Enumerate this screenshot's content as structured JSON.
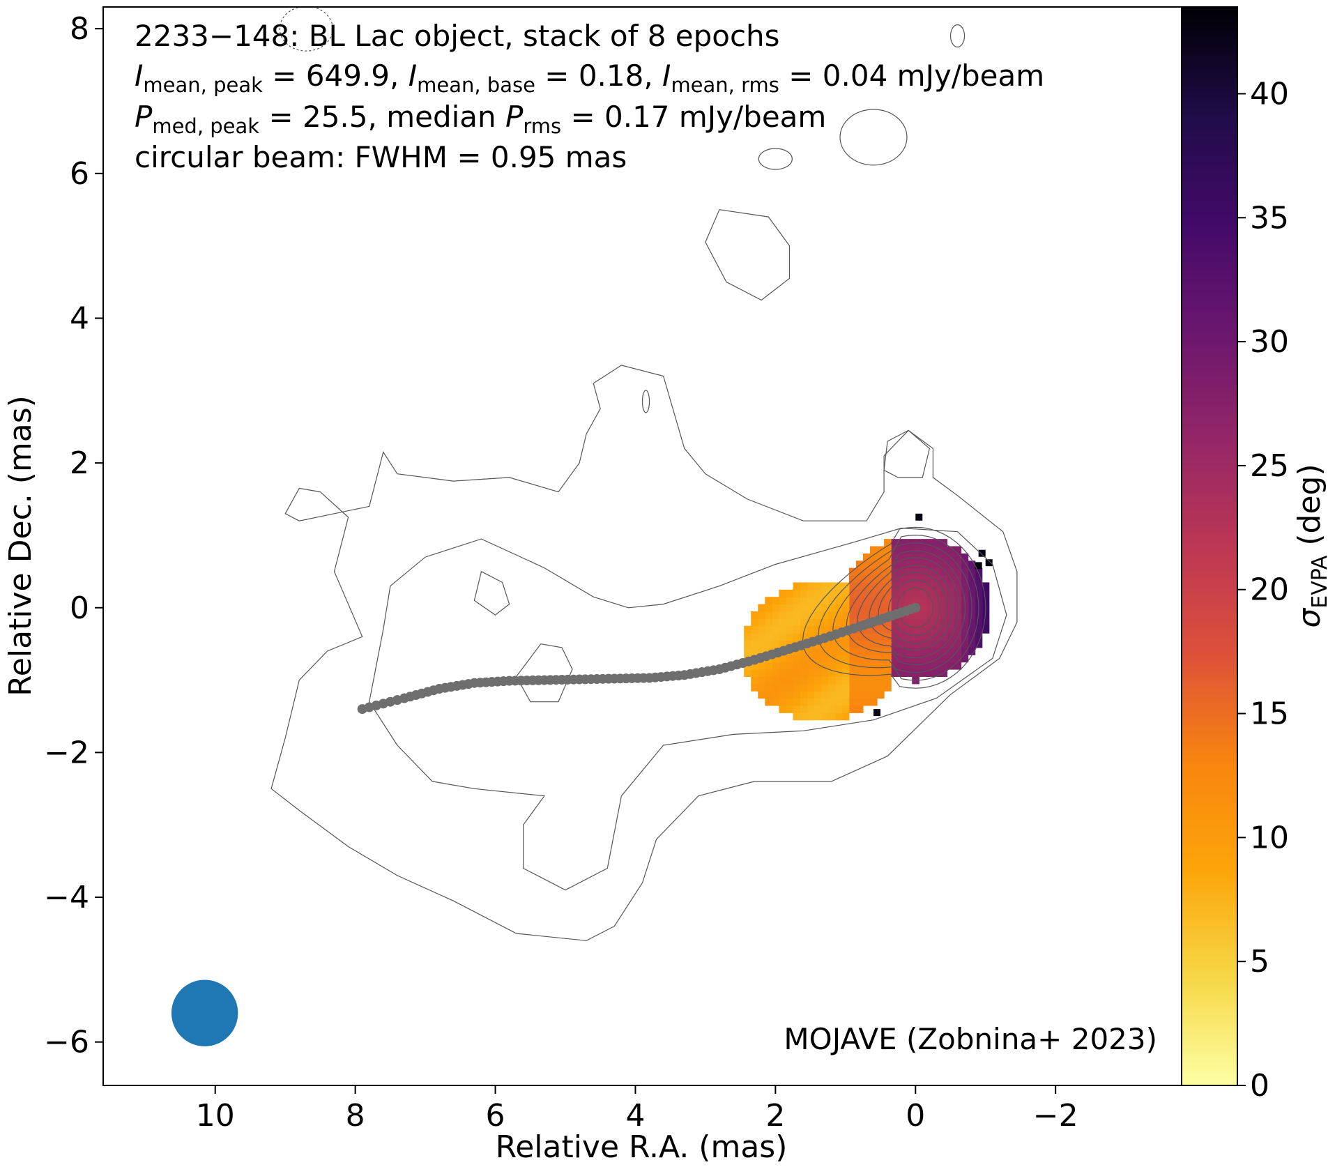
{
  "chart_data": {
    "type": "heatmap",
    "title": "2233−148: BL Lac object, stack of 8 epochs",
    "annotation_lines": [
      [
        [
          "I",
          "i"
        ],
        [
          "mean, peak",
          "sub"
        ],
        [
          " = 649.9, ",
          "n"
        ],
        [
          "I",
          "i"
        ],
        [
          "mean, base",
          "sub"
        ],
        [
          " = 0.18, ",
          "n"
        ],
        [
          "I",
          "i"
        ],
        [
          "mean, rms",
          "sub"
        ],
        [
          " = 0.04 mJy/beam",
          "n"
        ]
      ],
      [
        [
          "P",
          "i"
        ],
        [
          "med, peak",
          "sub"
        ],
        [
          " = 25.5, median ",
          "n"
        ],
        [
          "P",
          "i"
        ],
        [
          "rms",
          "sub"
        ],
        [
          " = 0.17 mJy/beam",
          "n"
        ]
      ],
      [
        [
          "circular beam: FWHM = 0.95 mas",
          "n"
        ]
      ]
    ],
    "credit": "MOJAVE (Zobnina+ 2023)",
    "xlabel": "Relative R.A. (mas)",
    "ylabel": "Relative Dec. (mas)",
    "xlim": [
      11.6,
      -3.8
    ],
    "ylim": [
      -6.6,
      8.3
    ],
    "xticks": [
      10,
      8,
      6,
      4,
      2,
      0,
      -2
    ],
    "yticks": [
      -6,
      -4,
      -2,
      0,
      2,
      4,
      6,
      8
    ],
    "grid": false,
    "colorbar": {
      "label_main": "σ",
      "label_sub": "EVPA",
      "label_unit": " (deg)",
      "colormap": "inferno_r",
      "range": [
        0,
        43.5
      ],
      "ticks": [
        0,
        5,
        10,
        15,
        20,
        25,
        30,
        35,
        40
      ],
      "stops": [
        "#fcffa4",
        "#f6d746",
        "#fca50a",
        "#f8850f",
        "#dd513a",
        "#bc3754",
        "#932667",
        "#6a176e",
        "#420a68",
        "#1f0c48",
        "#000004"
      ]
    },
    "contour_color": "#555555",
    "contour_levels_relative_to_core": [
      0.36,
      0.43,
      0.5,
      0.57,
      0.63,
      0.7,
      0.76,
      0.83,
      0.9
    ],
    "ridgeline": {
      "color": "#6e6e6e",
      "points": [
        [
          7.9,
          -1.4
        ],
        [
          7.3,
          -1.25
        ],
        [
          6.8,
          -1.12
        ],
        [
          6.3,
          -1.04
        ],
        [
          5.8,
          -1.01
        ],
        [
          5.3,
          -1.0
        ],
        [
          4.8,
          -0.99
        ],
        [
          4.3,
          -0.98
        ],
        [
          3.8,
          -0.97
        ],
        [
          3.3,
          -0.93
        ],
        [
          2.8,
          -0.85
        ],
        [
          2.3,
          -0.72
        ],
        [
          1.8,
          -0.57
        ],
        [
          1.3,
          -0.42
        ],
        [
          0.8,
          -0.26
        ],
        [
          0.4,
          -0.13
        ],
        [
          0.0,
          0.0
        ]
      ]
    },
    "polarization_map": {
      "description_values": "sigma_EVPA in deg: ~8-12 in the eastern jet, ~15 near the inner jet, ~22-30 in the core, up to ~44 at the western edge",
      "core_sigma": 24,
      "jet_sigma": 10,
      "edge_sigma_max": 43.5
    },
    "beam": {
      "center": [
        10.15,
        -5.6
      ],
      "fwhm": 0.95,
      "color": "#1f77b4"
    }
  }
}
